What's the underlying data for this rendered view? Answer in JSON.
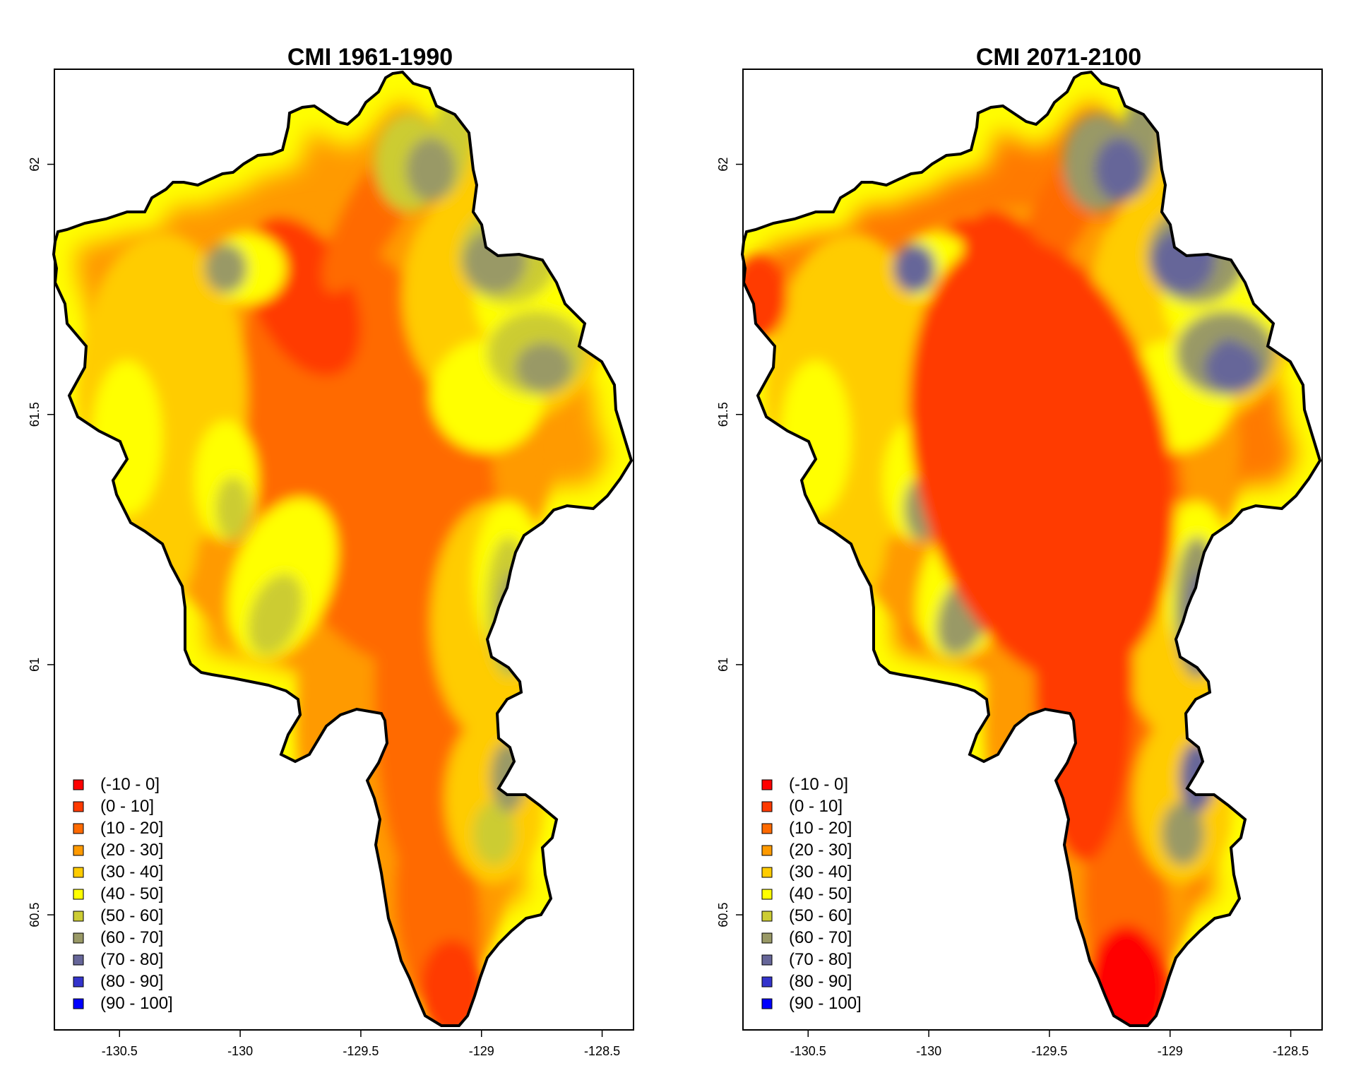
{
  "figure": {
    "panels": [
      {
        "id": "historical",
        "title": "CMI 1961-1990",
        "variant": "historical"
      },
      {
        "id": "future",
        "title": "CMI 2071-2100",
        "variant": "future"
      }
    ]
  },
  "chart_data": {
    "type": "heatmap",
    "description_free": true,
    "x_ticks": [
      "-130.5",
      "-130",
      "-129.5",
      "-129",
      "-128.5"
    ],
    "x_tick_values": [
      -130.5,
      -130,
      -129.5,
      -129,
      -128.5
    ],
    "y_ticks": [
      "62",
      "61.5",
      "61",
      "60.5"
    ],
    "y_tick_values": [
      62,
      61.5,
      61,
      60.5
    ],
    "xlim": [
      -130.77,
      -128.37
    ],
    "ylim": [
      60.27,
      62.19
    ],
    "legend_position": "bottom-left",
    "legend": [
      {
        "label": "(-10 - 0]",
        "color": "#ff0000"
      },
      {
        "label": "(0 - 10]",
        "color": "#ff3a00"
      },
      {
        "label": "(10 - 20]",
        "color": "#ff6a00"
      },
      {
        "label": "(20 - 30]",
        "color": "#ff9a00"
      },
      {
        "label": "(30 - 40]",
        "color": "#ffcc00"
      },
      {
        "label": "(40 - 50]",
        "color": "#ffff00"
      },
      {
        "label": "(50 - 60]",
        "color": "#cccc33"
      },
      {
        "label": "(60 - 70]",
        "color": "#999966"
      },
      {
        "label": "(70 - 80]",
        "color": "#666699"
      },
      {
        "label": "(80 - 90]",
        "color": "#3333cc"
      },
      {
        "label": "(90 - 100]",
        "color": "#0000ff"
      }
    ]
  }
}
